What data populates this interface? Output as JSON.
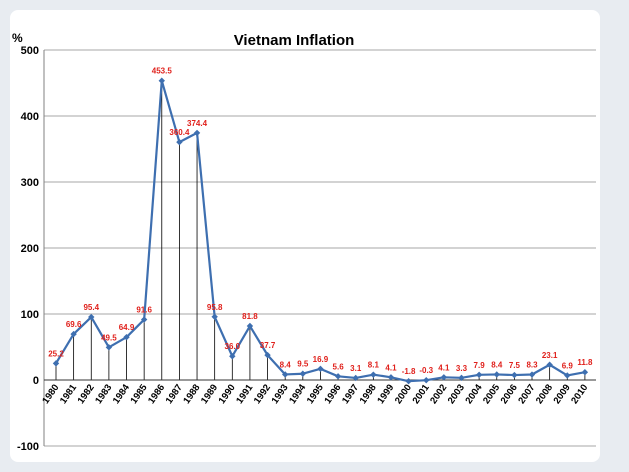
{
  "chart_data": {
    "type": "line",
    "title": "Vietnam Inflation",
    "ylabel": "%",
    "xlabel": "",
    "ylim": [
      -100,
      500
    ],
    "yticks": [
      -100,
      0,
      100,
      200,
      300,
      400,
      500
    ],
    "grid": true,
    "drop_lines": true,
    "series_color": "#3e6fb0",
    "label_color": "#e0201b",
    "categories": [
      "1980",
      "1981",
      "1982",
      "1983",
      "1984",
      "1985",
      "1986",
      "1987",
      "1988",
      "1989",
      "1990",
      "1991",
      "1992",
      "1993",
      "1994",
      "1995",
      "1996",
      "1997",
      "1998",
      "1999",
      "2000",
      "2001",
      "2002",
      "2003",
      "2004",
      "2005",
      "2006",
      "2007",
      "2008",
      "2009",
      "2010"
    ],
    "values": [
      25.2,
      69.6,
      95.4,
      49.5,
      64.9,
      91.6,
      453.5,
      360.4,
      374.4,
      95.8,
      36.0,
      81.8,
      37.7,
      8.4,
      9.5,
      16.9,
      5.6,
      3.1,
      8.1,
      4.1,
      -1.8,
      -0.3,
      4.1,
      3.3,
      7.9,
      8.4,
      7.5,
      8.3,
      23.1,
      6.9,
      11.8
    ],
    "data_labels": [
      "25.2",
      "69.6",
      "95.4",
      "49.5",
      "64.9",
      "91.6",
      "453.5",
      "360.4",
      "374.4",
      "95.8",
      "36.0",
      "81.8",
      "37.7",
      "8.4",
      "9.5",
      "16.9",
      "5.6",
      "3.1",
      "8.1",
      "4.1",
      "-1.8",
      "-0.3",
      "4.1",
      "3.3",
      "7.9",
      "8.4",
      "7.5",
      "8.3",
      "23.1",
      "6.9",
      "11.8"
    ]
  }
}
